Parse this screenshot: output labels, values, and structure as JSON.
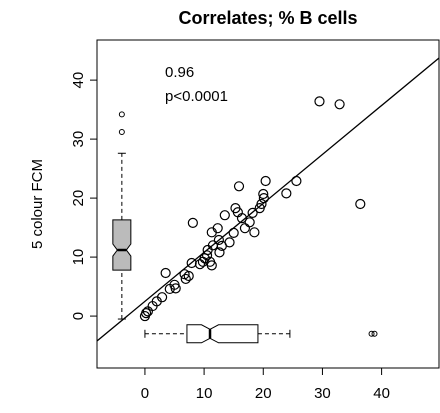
{
  "chart_data": {
    "type": "scatter",
    "title": "Correlates; % B cells",
    "ylabel": "5 colour FCM",
    "annotations": [
      "0.96",
      "p<0.0001"
    ],
    "x": [
      0,
      0.2,
      0.5,
      1.3,
      2,
      2.9,
      3.5,
      4.2,
      5,
      5.2,
      6.7,
      6.9,
      7.4,
      7.9,
      8.1,
      9.3,
      9.8,
      10.1,
      10.5,
      10.6,
      11,
      11.3,
      11.5,
      11.3,
      12.3,
      12.5,
      12.6,
      13,
      13.5,
      14.3,
      15,
      15.3,
      15.7,
      15.9,
      16.4,
      16.9,
      17.7,
      18.2,
      18.5,
      19.4,
      19.7,
      20.1,
      20.4,
      20,
      23.9,
      25.6,
      29.5,
      32.9,
      36.4
    ],
    "series": [
      {
        "color": "#000000",
        "values": [
          0,
          0.5,
          0.8,
          1.7,
          2.5,
          3.2,
          7.3,
          4.6,
          5.3,
          4.7,
          7.1,
          6.3,
          6.8,
          9,
          15.8,
          8.8,
          9.2,
          9.8,
          10.3,
          11.2,
          9.2,
          8.6,
          12,
          14.2,
          14.9,
          12.9,
          10.8,
          11.9,
          17.1,
          12.5,
          14.1,
          18.3,
          17.6,
          22,
          16.6,
          14.9,
          15.9,
          17.5,
          14.2,
          18.3,
          19,
          20,
          22.9,
          20.7,
          20.8,
          22.9,
          36.4,
          35.9,
          19
        ]
      }
    ],
    "regression": {
      "slope": 0.83,
      "intercept": 2.5,
      "color": "#000000"
    },
    "boxplots": [
      {
        "orientation": "vertical",
        "position": -3.9,
        "color": "#bbbbbb",
        "whisker_low": -0.5,
        "q1": 7.8,
        "median": 11.2,
        "q3": 16.3,
        "whisker_high": 27.6,
        "outliers": [
          31.2,
          34.2
        ]
      },
      {
        "orientation": "horizontal",
        "position": -3,
        "color": "#ffffff",
        "whisker_low": 0,
        "q1": 7.1,
        "median": 11,
        "q3": 19.1,
        "whisker_high": 24.5,
        "outliers": [
          38.3,
          38.8
        ]
      }
    ],
    "xlim": [
      -8.1,
      49.7
    ],
    "ylim": [
      -8.8,
      46.8
    ],
    "xticks": [
      0,
      10,
      20,
      30,
      40
    ],
    "yticks": [
      0,
      10,
      20,
      30,
      40
    ]
  }
}
